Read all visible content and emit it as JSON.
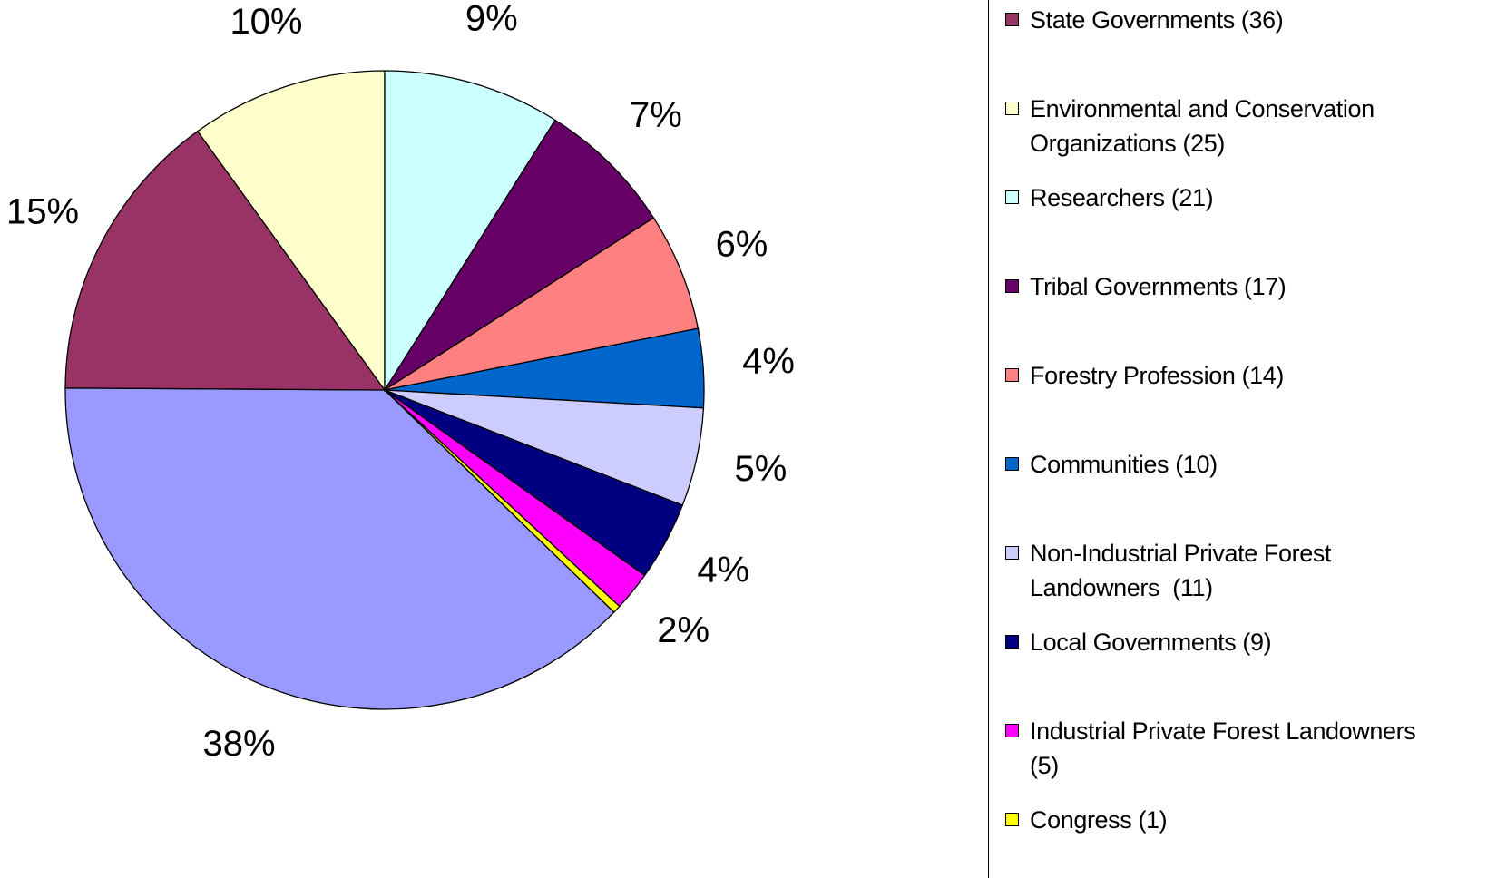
{
  "chart_data": {
    "type": "pie",
    "categories": [
      null,
      "State Governments (36)",
      "Environmental and Conservation Organizations (25)",
      "Researchers (21)",
      "Tribal Governments (17)",
      "Forestry Profession (14)",
      "Communities (10)",
      "Non-Industrial Private Forest Landowners  (11)",
      "Local Governments (9)",
      "Industrial Private Forest Landowners (5)",
      "Congress (1)"
    ],
    "values": [
      38,
      15,
      10,
      9,
      7,
      6,
      4,
      5,
      4,
      2,
      0.4
    ],
    "value_labels": [
      "38%",
      "15%",
      "10%",
      "9%",
      "7%",
      "6%",
      "4%",
      "5%",
      "4%",
      "2%",
      null
    ],
    "colors": [
      "#9999ff",
      "#993366",
      "#ffffcc",
      "#ccffff",
      "#660066",
      "#ff8080",
      "#0066cc",
      "#ccccff",
      "#000080",
      "#ff00ff",
      "#ffff00"
    ],
    "legend": "right"
  }
}
